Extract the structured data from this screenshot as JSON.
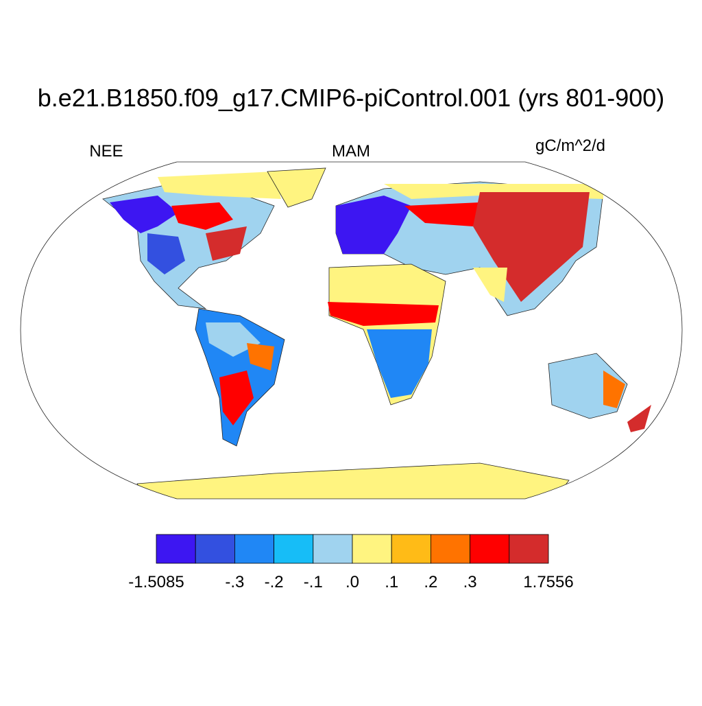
{
  "title": "b.e21.B1850.f09_g17.CMIP6-piControl.001 (yrs 801-900)",
  "left_label": "NEE",
  "center_label": "MAM",
  "right_label": "gC/m^2/d",
  "colorbar": {
    "colors": [
      "#3d16f2",
      "#3350e0",
      "#2087f5",
      "#17bdf7",
      "#a0d3ef",
      "#fff480",
      "#ffbb17",
      "#ff7300",
      "#ff0000",
      "#d42c2c"
    ],
    "edges": [
      {
        "value": -1.5085,
        "label": "-1.5085"
      },
      null,
      {
        "value": -0.3,
        "label": "-.3"
      },
      {
        "value": -0.2,
        "label": "-.2"
      },
      {
        "value": -0.1,
        "label": "-.1"
      },
      {
        "value": 0,
        "label": ".0"
      },
      {
        "value": 0.1,
        "label": ".1"
      },
      {
        "value": 0.2,
        "label": ".2"
      },
      {
        "value": 0.3,
        "label": ".3"
      },
      null,
      {
        "value": 1.7556,
        "label": "1.7556"
      }
    ]
  }
}
